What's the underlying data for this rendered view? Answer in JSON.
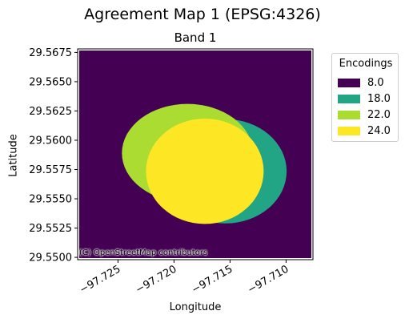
{
  "figure": {
    "title": "Agreement Map 1 (EPSG:4326)",
    "subtitle": "Band 1",
    "attribution": "(C) OpenStreetMap contributors"
  },
  "map": {
    "xlabel": "Longitude",
    "ylabel": "Latitude",
    "xlim": [
      -97.7286,
      -97.7076
    ],
    "ylim": [
      29.5498,
      29.5678
    ],
    "xticks": [
      -97.725,
      -97.72,
      -97.715,
      -97.71
    ],
    "xtick_labels": [
      "−97.725",
      "−97.720",
      "−97.715",
      "−97.710"
    ],
    "yticks": [
      29.55,
      29.5525,
      29.555,
      29.5575,
      29.56,
      29.5625,
      29.565,
      29.5675
    ],
    "ytick_labels": [
      "29.5500",
      "29.5525",
      "29.5550",
      "29.5575",
      "29.5600",
      "29.5625",
      "29.5650",
      "29.5675"
    ],
    "background_value": 8.0,
    "regions": [
      {
        "encoding": 18.0,
        "shape": "ellipse",
        "center_lon": -97.7154,
        "center_lat": 29.55735,
        "radius_lon": 0.00545,
        "radius_lat": 0.00445
      },
      {
        "encoding": 22.0,
        "shape": "ellipse",
        "center_lon": -97.7188,
        "center_lat": 29.5589,
        "radius_lon": 0.00585,
        "radius_lat": 0.0042
      },
      {
        "encoding": 24.0,
        "shape": "ellipse",
        "center_lon": -97.71725,
        "center_lat": 29.55735,
        "radius_lon": 0.00525,
        "radius_lat": 0.0045
      }
    ]
  },
  "legend": {
    "title": "Encodings",
    "items": [
      {
        "label": "8.0",
        "color": "#440154"
      },
      {
        "label": "18.0",
        "color": "#21a585"
      },
      {
        "label": "22.0",
        "color": "#aadc32"
      },
      {
        "label": "24.0",
        "color": "#fde725"
      }
    ]
  }
}
